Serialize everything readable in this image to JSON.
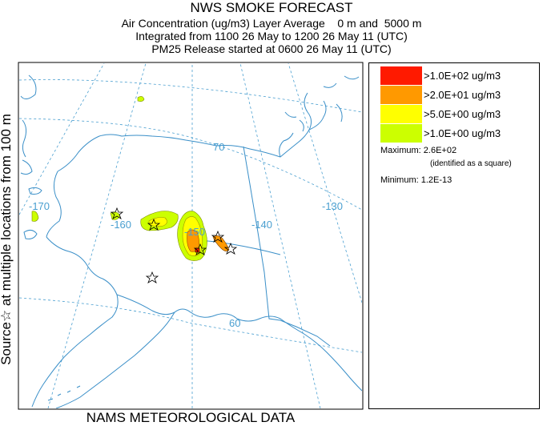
{
  "header": {
    "title": "NWS SMOKE FORECAST",
    "line1": "Air Concentration (ug/m3) Layer Average    0 m and  5000 m",
    "line2": "Integrated from 1100 26 May to 1200 26 May 11 (UTC)",
    "line3": "PM25 Release started at 0600 26 May 11 (UTC)"
  },
  "side_label": "Source☆ at multiple locations  from  100 m",
  "bottom_label": "NAMS METEOROLOGICAL DATA",
  "map": {
    "lat_labels": [
      "70",
      "60"
    ],
    "lon_labels": [
      "-170",
      "-160",
      "-150",
      "-140",
      "-130"
    ],
    "graticule_color": "#4a9fd0",
    "coast_color": "#3a8fc8"
  },
  "legend": {
    "items": [
      {
        "label": ">1.0E+02 ug/m3",
        "color": "#ff1a00"
      },
      {
        "label": ">2.0E+01 ug/m3",
        "color": "#ff9900"
      },
      {
        "label": ">5.0E+00 ug/m3",
        "color": "#ffff00"
      },
      {
        "label": ">1.0E+00 ug/m3",
        "color": "#ccff00"
      }
    ],
    "maximum": "Maximum: 2.6E+02",
    "maximum_note": "(identified as a square)",
    "minimum": "Minimum: 1.2E-13"
  }
}
